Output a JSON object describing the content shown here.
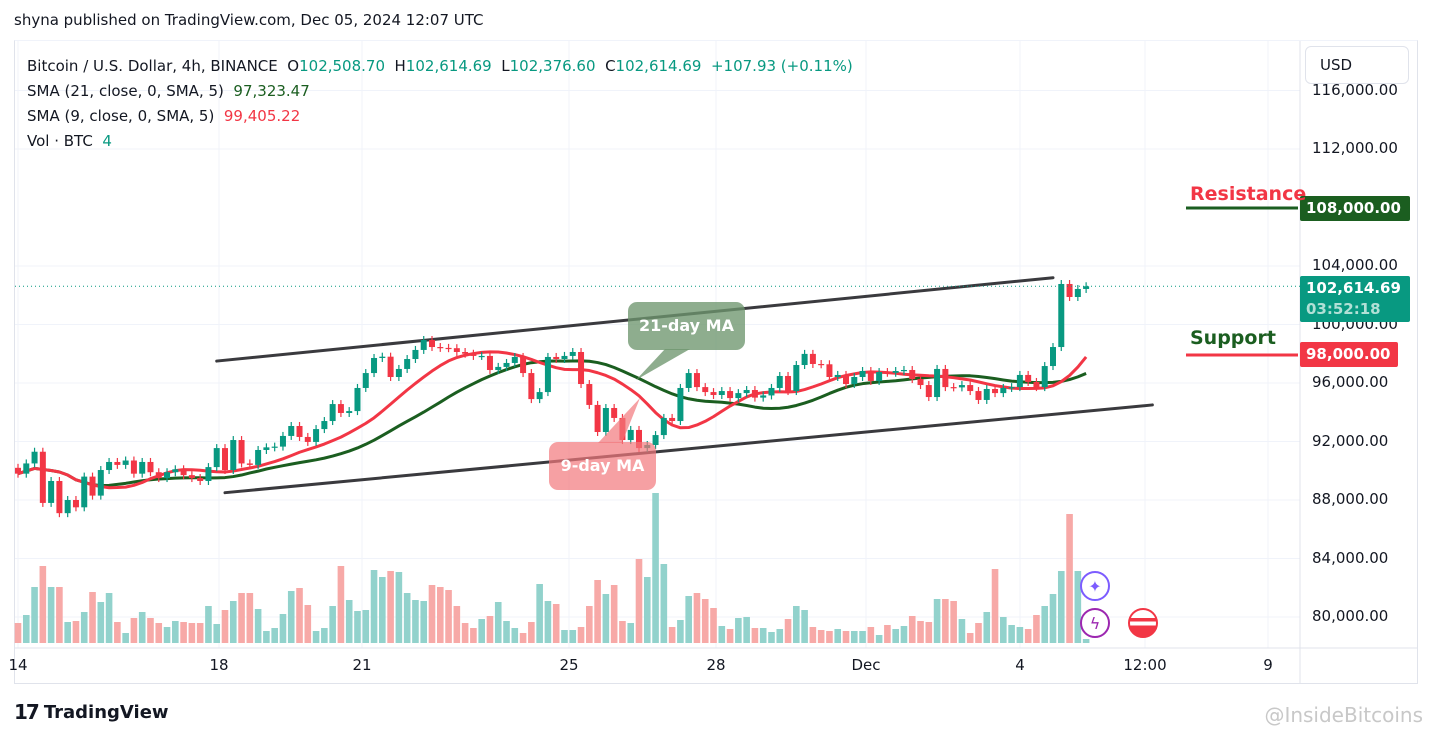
{
  "publish_line": "shyna published on TradingView.com, Dec 05, 2024 12:07 UTC",
  "legend": {
    "symbol": "Bitcoin / U.S. Dollar, 4h, BINANCE",
    "o_label": "O",
    "o": "102,508.70",
    "h_label": "H",
    "h": "102,614.69",
    "l_label": "L",
    "l": "102,376.60",
    "c_label": "C",
    "c": "102,614.69",
    "change": "+107.93 (+0.11%)",
    "sma21_label": "SMA (21, close, 0, SMA, 5)",
    "sma21_value": "97,323.47",
    "sma9_label": "SMA (9, close, 0, SMA, 5)",
    "sma9_value": "99,405.22",
    "vol_label": "Vol · BTC",
    "vol_value": "4"
  },
  "currency_button": "USD",
  "price_axis": [
    "116,000.00",
    "112,000.00",
    "104,000.00",
    "100,000.00",
    "96,000.00",
    "92,000.00",
    "88,000.00",
    "84,000.00",
    "80,000.00"
  ],
  "time_axis": [
    "14",
    "18",
    "21",
    "25",
    "28",
    "Dec",
    "4",
    "12:00",
    "9"
  ],
  "current_price": {
    "price": "102,614.69",
    "countdown": "03:52:18"
  },
  "resistance": {
    "label": "Resistance",
    "price_tag": "108,000.00",
    "value": 108000
  },
  "support": {
    "label": "Support",
    "price_tag": "98,000.00",
    "value": 98000
  },
  "callouts": {
    "ma21": "21-day MA",
    "ma9": "9-day MA"
  },
  "footer": {
    "brand": "TradingView",
    "watermark": "@InsideBitcoins"
  },
  "colors": {
    "up": "#089981",
    "down": "#f23645",
    "sma21": "#1b5e20",
    "sma9": "#f23645",
    "vol_up": "#92d2cc",
    "vol_down": "#f7a9a7",
    "trendline": "#3a3a3e"
  },
  "chart_data": {
    "type": "candlestick",
    "symbol": "BTCUSD",
    "interval": "4h",
    "ylim": [
      78000,
      117000
    ],
    "yticks": [
      80000,
      84000,
      88000,
      92000,
      96000,
      100000,
      104000,
      108000,
      112000,
      116000
    ],
    "xtick_labels": [
      "14",
      "18",
      "21",
      "25",
      "28",
      "Dec",
      "4",
      "12:00",
      "9"
    ],
    "grid": true,
    "first_open": 90200,
    "close": [
      89800,
      90500,
      91300,
      87800,
      89300,
      87100,
      88000,
      87500,
      89600,
      88300,
      90050,
      90600,
      90400,
      90700,
      89800,
      90600,
      89900,
      89500,
      89900,
      90100,
      89700,
      89500,
      89300,
      90250,
      91550,
      90050,
      92100,
      90500,
      90400,
      91420,
      91600,
      91650,
      92380,
      93060,
      92310,
      91970,
      92850,
      93400,
      94560,
      93950,
      94080,
      95660,
      96680,
      97710,
      97800,
      96410,
      96960,
      97640,
      98260,
      98940,
      98460,
      98400,
      98380,
      98120,
      98000,
      97850,
      97850,
      96890,
      97100,
      97370,
      97780,
      96680,
      94900,
      95380,
      97780,
      97640,
      97850,
      98120,
      95930,
      94500,
      92650,
      94290,
      93610,
      92100,
      92790,
      91550,
      91760,
      92440,
      93610,
      93400,
      95660,
      96680,
      95720,
      95380,
      95180,
      95450,
      94970,
      95310,
      95520,
      95000,
      95150,
      95660,
      96480,
      95450,
      97230,
      97990,
      97300,
      97280,
      96410,
      96550,
      95930,
      96410,
      96820,
      96140,
      96750,
      96700,
      96820,
      96890,
      96270,
      95860,
      95040,
      96960,
      95720,
      95700,
      95860,
      95450,
      94840,
      95590,
      95310,
      95660,
      95720,
      96550,
      96070,
      95720,
      97160,
      98460,
      102770,
      101880,
      102430,
      102614.69
    ],
    "volume_relative": [
      20,
      28,
      56,
      77,
      56,
      56,
      21,
      22,
      31,
      51,
      41,
      50,
      21,
      10,
      25,
      31,
      25,
      20,
      16,
      22,
      21,
      20,
      20,
      37,
      19,
      33,
      42,
      50,
      50,
      34,
      12,
      15,
      29,
      52,
      55,
      38,
      12,
      15,
      37,
      77,
      43,
      32,
      33,
      73,
      66,
      72,
      71,
      50,
      43,
      42,
      58,
      56,
      53,
      37,
      20,
      15,
      24,
      27,
      41,
      22,
      15,
      10,
      21,
      59,
      42,
      39,
      13,
      13,
      16,
      37,
      63,
      49,
      58,
      22,
      20,
      84,
      66,
      150,
      79,
      16,
      23,
      47,
      50,
      44,
      35,
      17,
      14,
      25,
      26,
      15,
      15,
      11,
      14,
      24,
      37,
      33,
      16,
      13,
      12,
      14,
      12,
      12,
      12,
      16,
      8,
      18,
      14,
      17,
      27,
      22,
      21,
      44,
      44,
      42,
      24,
      10,
      20,
      31,
      74,
      26,
      18,
      16,
      14,
      28,
      37,
      49,
      72,
      129,
      72,
      4
    ],
    "sma_periods": [
      9,
      21
    ],
    "trendlines": [
      {
        "name": "upper-channel",
        "points": [
          [
            24,
            97500
          ],
          [
            125,
            103200
          ]
        ]
      },
      {
        "name": "lower-channel",
        "points": [
          [
            25,
            88500
          ],
          [
            137,
            94500
          ]
        ]
      }
    ]
  }
}
